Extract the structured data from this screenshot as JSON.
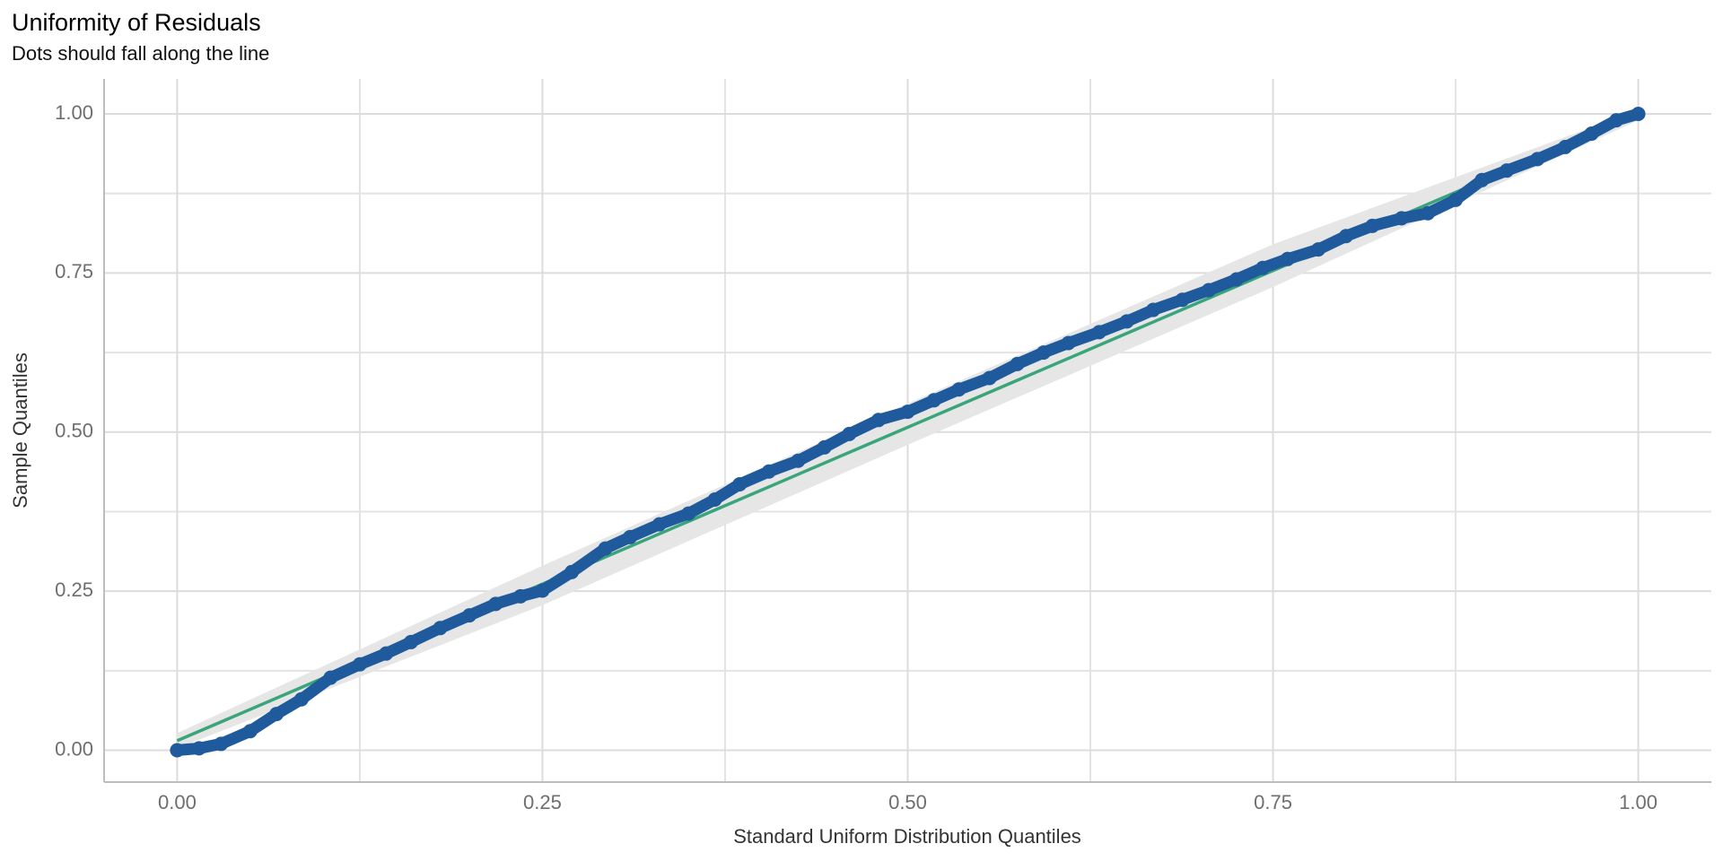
{
  "chart_data": {
    "type": "qq",
    "title": "Uniformity of Residuals",
    "subtitle": "Dots should fall along the line",
    "x_label": "Standard Uniform Distribution Quantiles",
    "y_label": "Sample Quantiles",
    "xlim": [
      -0.05,
      1.05
    ],
    "ylim": [
      -0.05,
      1.055
    ],
    "xticks": [
      {
        "value": 0,
        "label": "0.00"
      },
      {
        "value": 0.25,
        "label": "0.25"
      },
      {
        "value": 0.5,
        "label": "0.50"
      },
      {
        "value": 0.75,
        "label": "0.75"
      },
      {
        "value": 1,
        "label": "1.00"
      }
    ],
    "yticks": [
      {
        "value": 0,
        "label": "0.00"
      },
      {
        "value": 0.25,
        "label": "0.25"
      },
      {
        "value": 0.5,
        "label": "0.50"
      },
      {
        "value": 0.75,
        "label": "0.75"
      },
      {
        "value": 1,
        "label": "1.00"
      }
    ],
    "minor_grid": [
      0.125,
      0.375,
      0.625,
      0.875
    ],
    "grid": true,
    "points": {
      "color": "#1f5a9c",
      "x": [
        0,
        0.015,
        0.03,
        0.05,
        0.068,
        0.085,
        0.105,
        0.125,
        0.143,
        0.16,
        0.18,
        0.2,
        0.218,
        0.235,
        0.25,
        0.27,
        0.293,
        0.31,
        0.33,
        0.35,
        0.368,
        0.385,
        0.405,
        0.425,
        0.443,
        0.46,
        0.48,
        0.5,
        0.518,
        0.535,
        0.556,
        0.575,
        0.593,
        0.61,
        0.631,
        0.65,
        0.668,
        0.688,
        0.706,
        0.725,
        0.743,
        0.76,
        0.781,
        0.8,
        0.818,
        0.838,
        0.856,
        0.875,
        0.893,
        0.91,
        0.931,
        0.95,
        0.968,
        0.985,
        1
      ],
      "y": [
        0,
        0.003,
        0.01,
        0.03,
        0.057,
        0.08,
        0.114,
        0.135,
        0.152,
        0.17,
        0.192,
        0.212,
        0.23,
        0.242,
        0.251,
        0.28,
        0.317,
        0.335,
        0.355,
        0.372,
        0.394,
        0.418,
        0.438,
        0.455,
        0.476,
        0.497,
        0.519,
        0.532,
        0.55,
        0.567,
        0.585,
        0.607,
        0.625,
        0.64,
        0.657,
        0.674,
        0.692,
        0.708,
        0.723,
        0.74,
        0.758,
        0.772,
        0.787,
        0.808,
        0.824,
        0.836,
        0.844,
        0.865,
        0.896,
        0.911,
        0.929,
        0.948,
        0.969,
        0.99,
        1
      ]
    },
    "line": {
      "color": "#3aa57a",
      "x": [
        0,
        1
      ],
      "y": [
        0.015,
        1
      ]
    },
    "band": {
      "color": "#e6e6e6",
      "x": [
        0,
        0.25,
        0.5,
        0.75,
        1
      ],
      "lower": [
        0.003,
        0.228,
        0.48,
        0.728,
        0.99
      ],
      "upper": [
        0.027,
        0.29,
        0.545,
        0.795,
        1.006
      ]
    }
  }
}
